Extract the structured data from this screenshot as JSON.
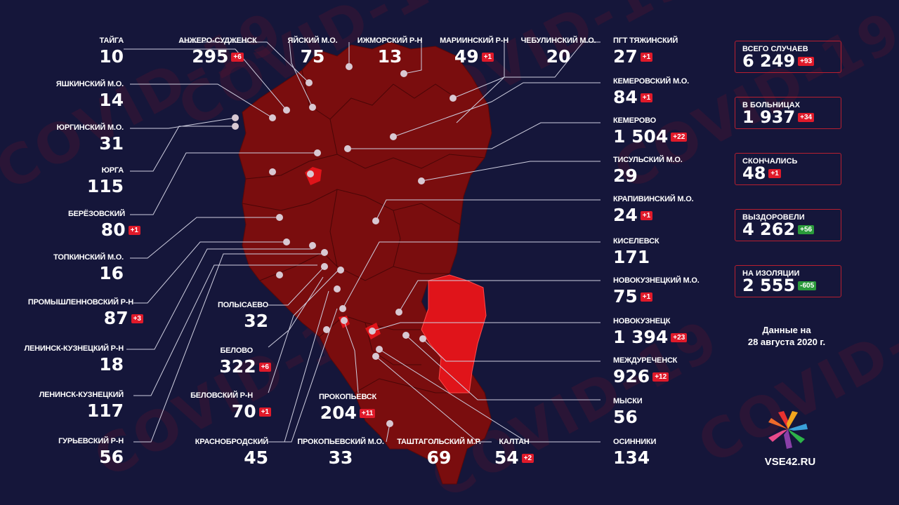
{
  "watermark": "COVID-19",
  "totals": [
    {
      "title": "ВСЕГО СЛУЧАЕВ",
      "value": "6 249",
      "delta": "+93",
      "color": "#e01a2a"
    },
    {
      "title": "В БОЛЬНИЦАХ",
      "value": "1 937",
      "delta": "+34",
      "color": "#e01a2a"
    },
    {
      "title": "СКОНЧАЛИСЬ",
      "value": "48",
      "delta": "+1",
      "color": "#e01a2a"
    },
    {
      "title": "ВЫЗДОРОВЕЛИ",
      "value": "4 262",
      "delta": "+56",
      "color": "#2a9a3a"
    },
    {
      "title": "НА ИЗОЛЯЦИИ",
      "value": "2 555",
      "delta": "-605",
      "color": "#2a9a3a"
    }
  ],
  "date_line1": "Данные на",
  "date_line2": "28 августа 2020 г.",
  "site": "VSE42.RU",
  "regions": [
    {
      "name": "ТАЙГА",
      "value": "10",
      "delta": ""
    },
    {
      "name": "ЯШКИНСКИЙ М.О.",
      "value": "14",
      "delta": ""
    },
    {
      "name": "ЮРГИНСКИЙ М.О.",
      "value": "31",
      "delta": ""
    },
    {
      "name": "ЮРГА",
      "value": "115",
      "delta": ""
    },
    {
      "name": "БЕРЁЗОВСКИЙ",
      "value": "80",
      "delta": "+1"
    },
    {
      "name": "ТОПКИНСКИЙ М.О.",
      "value": "16",
      "delta": ""
    },
    {
      "name": "ПРОМЫШЛЕННОВСКИЙ Р-Н",
      "value": "87",
      "delta": "+3"
    },
    {
      "name": "ЛЕНИНСК-КУЗНЕЦКИЙ Р-Н",
      "value": "18",
      "delta": ""
    },
    {
      "name": "ЛЕНИНСК-КУЗНЕЦКИЙ",
      "value": "117",
      "delta": ""
    },
    {
      "name": "ГУРЬЕВСКИЙ Р-Н",
      "value": "56",
      "delta": ""
    },
    {
      "name": "АНЖЕРО-СУДЖЕНСК",
      "value": "295",
      "delta": "+6"
    },
    {
      "name": "ЯЙСКИЙ М.О.",
      "value": "75",
      "delta": ""
    },
    {
      "name": "ИЖМОРСКИЙ Р-Н",
      "value": "13",
      "delta": ""
    },
    {
      "name": "МАРИИНСКИЙ Р-Н",
      "value": "49",
      "delta": "+1"
    },
    {
      "name": "ЧЕБУЛИНСКИЙ М.О.",
      "value": "20",
      "delta": ""
    },
    {
      "name": "ПОЛЫСАЕВО",
      "value": "32",
      "delta": ""
    },
    {
      "name": "БЕЛОВО",
      "value": "322",
      "delta": "+6"
    },
    {
      "name": "БЕЛОВСКИЙ Р-Н",
      "value": "70",
      "delta": "+1"
    },
    {
      "name": "КРАСНОБРОДСКИЙ",
      "value": "45",
      "delta": ""
    },
    {
      "name": "ПРОКОПЬЕВСК",
      "value": "204",
      "delta": "+11"
    },
    {
      "name": "ПРОКОПЬЕВСКИЙ М.О.",
      "value": "33",
      "delta": ""
    },
    {
      "name": "ТАШТАГОЛЬСКИЙ М.Р.",
      "value": "69",
      "delta": ""
    },
    {
      "name": "КАЛТАН",
      "value": "54",
      "delta": "+2"
    },
    {
      "name": "ПГТ ТЯЖИНСКИЙ",
      "value": "27",
      "delta": "+1"
    },
    {
      "name": "КЕМЕРОВСКИЙ М.О.",
      "value": "84",
      "delta": "+1"
    },
    {
      "name": "КЕМЕРОВО",
      "value": "1 504",
      "delta": "+22"
    },
    {
      "name": "ТИСУЛЬСКИЙ М.О.",
      "value": "29",
      "delta": ""
    },
    {
      "name": "КРАПИВИНСКИЙ М.О.",
      "value": "24",
      "delta": "+1"
    },
    {
      "name": "КИСЕЛЕВСК",
      "value": "171",
      "delta": ""
    },
    {
      "name": "НОВОКУЗНЕЦКИЙ М.О.",
      "value": "75",
      "delta": "+1"
    },
    {
      "name": "НОВОКУЗНЕЦК",
      "value": "1 394",
      "delta": "+23"
    },
    {
      "name": "МЕЖДУРЕЧЕНСК",
      "value": "926",
      "delta": "+12"
    },
    {
      "name": "МЫСКИ",
      "value": "56",
      "delta": ""
    },
    {
      "name": "ОСИННИКИ",
      "value": "134",
      "delta": ""
    }
  ]
}
